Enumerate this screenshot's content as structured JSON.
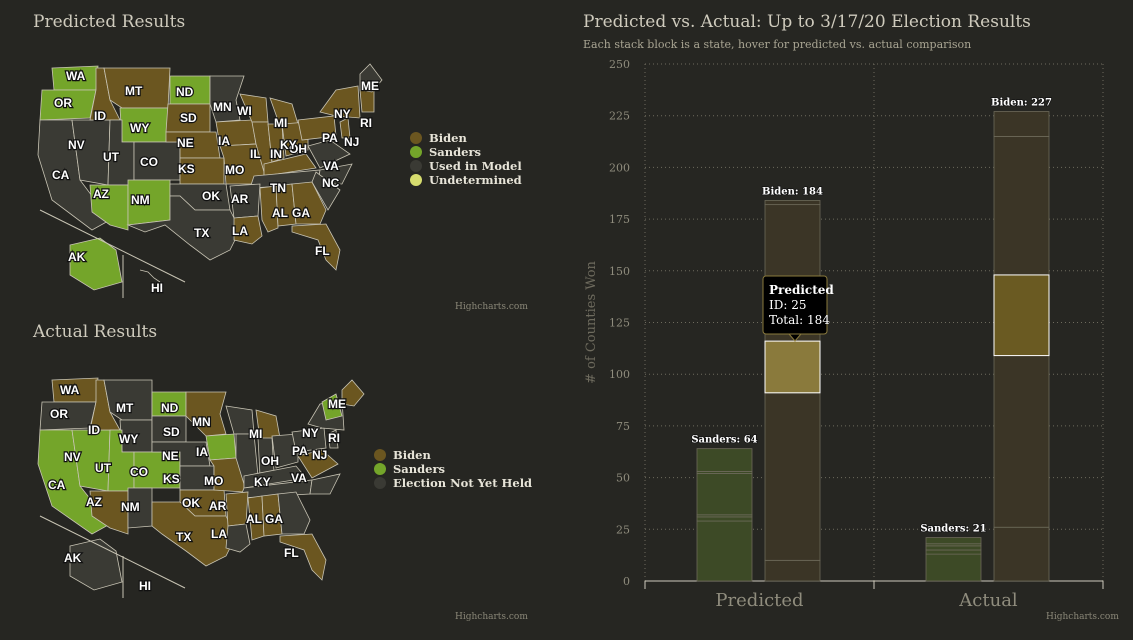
{
  "predicted_map": {
    "title": "Predicted Results",
    "credit": "Highcharts.com",
    "legend": [
      {
        "label": "Biden",
        "color": "#6b5620"
      },
      {
        "label": "Sanders",
        "color": "#74a52a"
      },
      {
        "label": "Used in Model",
        "color": "#3a3a34"
      },
      {
        "label": "Undetermined",
        "color": "#d6dc6e"
      }
    ],
    "states": [
      {
        "abbr": "WA",
        "winner": "Sanders"
      },
      {
        "abbr": "OR",
        "winner": "Sanders"
      },
      {
        "abbr": "MT",
        "winner": "Biden"
      },
      {
        "abbr": "ND",
        "winner": "Sanders"
      },
      {
        "abbr": "ID",
        "winner": "Biden"
      },
      {
        "abbr": "WY",
        "winner": "Sanders"
      },
      {
        "abbr": "SD",
        "winner": "Biden"
      },
      {
        "abbr": "MN",
        "winner": "Used in Model"
      },
      {
        "abbr": "WI",
        "winner": "Biden"
      },
      {
        "abbr": "MI",
        "winner": "Biden"
      },
      {
        "abbr": "NE",
        "winner": "Biden"
      },
      {
        "abbr": "IA",
        "winner": "Biden"
      },
      {
        "abbr": "NV",
        "winner": "Used in Model"
      },
      {
        "abbr": "UT",
        "winner": "Used in Model"
      },
      {
        "abbr": "CO",
        "winner": "Used in Model"
      },
      {
        "abbr": "KS",
        "winner": "Biden"
      },
      {
        "abbr": "IL",
        "winner": "Biden"
      },
      {
        "abbr": "IN",
        "winner": "Biden"
      },
      {
        "abbr": "OH",
        "winner": "Biden"
      },
      {
        "abbr": "PA",
        "winner": "Biden"
      },
      {
        "abbr": "NY",
        "winner": "Biden"
      },
      {
        "abbr": "NJ",
        "winner": "Biden"
      },
      {
        "abbr": "RI",
        "winner": "Biden"
      },
      {
        "abbr": "ME",
        "winner": "Used in Model"
      },
      {
        "abbr": "CA",
        "winner": "Used in Model"
      },
      {
        "abbr": "AZ",
        "winner": "Sanders"
      },
      {
        "abbr": "NM",
        "winner": "Sanders"
      },
      {
        "abbr": "OK",
        "winner": "Used in Model"
      },
      {
        "abbr": "MO",
        "winner": "Biden"
      },
      {
        "abbr": "KY",
        "winner": "Biden"
      },
      {
        "abbr": "VA",
        "winner": "Used in Model"
      },
      {
        "abbr": "TN",
        "winner": "Used in Model"
      },
      {
        "abbr": "NC",
        "winner": "Used in Model"
      },
      {
        "abbr": "AR",
        "winner": "Used in Model"
      },
      {
        "abbr": "TX",
        "winner": "Used in Model"
      },
      {
        "abbr": "LA",
        "winner": "Biden"
      },
      {
        "abbr": "AL",
        "winner": "Biden"
      },
      {
        "abbr": "GA",
        "winner": "Biden"
      },
      {
        "abbr": "FL",
        "winner": "Biden"
      },
      {
        "abbr": "AK",
        "winner": "Sanders"
      },
      {
        "abbr": "HI",
        "winner": "Used in Model"
      }
    ]
  },
  "actual_map": {
    "title": "Actual Results",
    "credit": "Highcharts.com",
    "legend": [
      {
        "label": "Biden",
        "color": "#6b5620"
      },
      {
        "label": "Sanders",
        "color": "#74a52a"
      },
      {
        "label": "Election Not Yet Held",
        "color": "#3a3a34"
      }
    ],
    "states": [
      {
        "abbr": "WA",
        "winner": "Biden"
      },
      {
        "abbr": "OR",
        "winner": "Election Not Yet Held"
      },
      {
        "abbr": "MT",
        "winner": "Election Not Yet Held"
      },
      {
        "abbr": "ND",
        "winner": "Sanders"
      },
      {
        "abbr": "ID",
        "winner": "Biden"
      },
      {
        "abbr": "WY",
        "winner": "Election Not Yet Held"
      },
      {
        "abbr": "SD",
        "winner": "Election Not Yet Held"
      },
      {
        "abbr": "MN",
        "winner": "Biden"
      },
      {
        "abbr": "MI",
        "winner": "Biden"
      },
      {
        "abbr": "NE",
        "winner": "Election Not Yet Held"
      },
      {
        "abbr": "IA",
        "winner": "Sanders"
      },
      {
        "abbr": "NV",
        "winner": "Sanders"
      },
      {
        "abbr": "UT",
        "winner": "Sanders"
      },
      {
        "abbr": "CO",
        "winner": "Sanders"
      },
      {
        "abbr": "KS",
        "winner": "Election Not Yet Held"
      },
      {
        "abbr": "OH",
        "winner": "Election Not Yet Held"
      },
      {
        "abbr": "PA",
        "winner": "Election Not Yet Held"
      },
      {
        "abbr": "NY",
        "winner": "Election Not Yet Held"
      },
      {
        "abbr": "NJ",
        "winner": "Election Not Yet Held"
      },
      {
        "abbr": "RI",
        "winner": "Election Not Yet Held"
      },
      {
        "abbr": "ME",
        "winner": "Biden"
      },
      {
        "abbr": "CA",
        "winner": "Sanders"
      },
      {
        "abbr": "AZ",
        "winner": "Biden"
      },
      {
        "abbr": "NM",
        "winner": "Election Not Yet Held"
      },
      {
        "abbr": "OK",
        "winner": "Biden"
      },
      {
        "abbr": "MO",
        "winner": "Biden"
      },
      {
        "abbr": "KY",
        "winner": "Election Not Yet Held"
      },
      {
        "abbr": "VA",
        "winner": "Biden"
      },
      {
        "abbr": "AR",
        "winner": "Biden"
      },
      {
        "abbr": "TX",
        "winner": "Biden"
      },
      {
        "abbr": "LA",
        "winner": "Election Not Yet Held"
      },
      {
        "abbr": "AL",
        "winner": "Biden"
      },
      {
        "abbr": "GA",
        "winner": "Election Not Yet Held"
      },
      {
        "abbr": "FL",
        "winner": "Biden"
      },
      {
        "abbr": "AK",
        "winner": "Election Not Yet Held"
      },
      {
        "abbr": "HI",
        "winner": "Election Not Yet Held"
      }
    ]
  },
  "bar_chart": {
    "title": "Predicted vs. Actual: Up to 3/17/20 Election Results",
    "subtitle": "Each stack block is a state, hover for predicted vs. actual comparison",
    "credit": "Highcharts.com",
    "tooltip": {
      "heading": "Predicted",
      "id_line": "ID: 25",
      "total_line": "Total: 184"
    }
  },
  "chart_data": {
    "type": "bar",
    "stacked": true,
    "categories": [
      "Predicted",
      "Actual"
    ],
    "ylabel": "# of Counties Won",
    "ylim": [
      0,
      250
    ],
    "yticks": [
      0,
      25,
      50,
      75,
      100,
      125,
      150,
      175,
      200,
      225,
      250
    ],
    "grid": true,
    "series": [
      {
        "name": "Sanders",
        "color": "#3d4a26",
        "values": [
          64,
          21
        ],
        "segments": [
          [
            29,
            2,
            1,
            20,
            1,
            11
          ],
          [
            13,
            2,
            2,
            1,
            3
          ]
        ],
        "total_labels": [
          "Sanders: 64",
          "Sanders: 21"
        ]
      },
      {
        "name": "Biden",
        "color": "#3b3526",
        "values": [
          184,
          227
        ],
        "segments": [
          [
            10,
            81,
            25,
            66,
            2
          ],
          [
            26,
            83,
            39,
            67,
            12
          ]
        ],
        "total_labels": [
          "Biden: 184",
          "Biden: 227"
        ]
      }
    ],
    "highlight": [
      {
        "category": "Predicted",
        "series": "Biden",
        "from": 91,
        "to": 116,
        "color": "#8a7a3c"
      },
      {
        "category": "Actual",
        "series": "Biden",
        "from": 109,
        "to": 148,
        "color": "#6a5a22"
      }
    ]
  }
}
